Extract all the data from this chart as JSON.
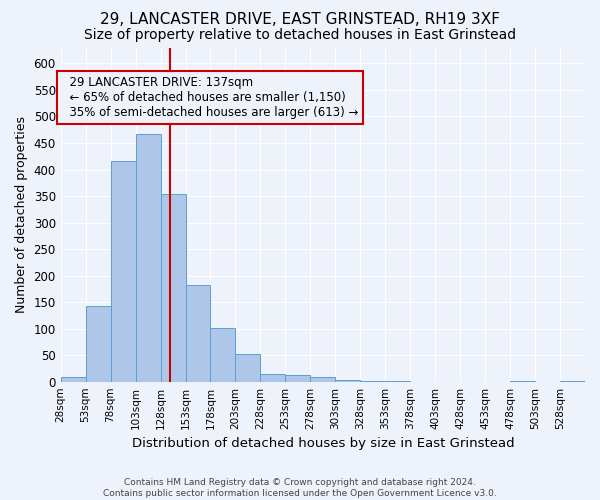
{
  "title1": "29, LANCASTER DRIVE, EAST GRINSTEAD, RH19 3XF",
  "title2": "Size of property relative to detached houses in East Grinstead",
  "xlabel": "Distribution of detached houses by size in East Grinstead",
  "ylabel": "Number of detached properties",
  "footer1": "Contains HM Land Registry data © Crown copyright and database right 2024.",
  "footer2": "Contains public sector information licensed under the Open Government Licence v3.0.",
  "bin_edges": [
    28,
    53,
    78,
    103,
    128,
    153,
    178,
    203,
    228,
    253,
    278,
    303,
    328,
    353,
    378,
    403,
    428,
    453,
    478,
    503,
    528,
    553
  ],
  "bar_heights": [
    8,
    143,
    416,
    467,
    354,
    183,
    101,
    53,
    15,
    12,
    9,
    4,
    2,
    1,
    0,
    0,
    0,
    0,
    2,
    0,
    2
  ],
  "bar_color": "#aec6e8",
  "bar_edge_color": "#5a9fd4",
  "property_size": 137,
  "vline_color": "#cc0000",
  "annotation_line1": "29 LANCASTER DRIVE: 137sqm",
  "annotation_line2": "← 65% of detached houses are smaller (1,150)",
  "annotation_line3": "35% of semi-detached houses are larger (613) →",
  "annotation_box_color": "#cc0000",
  "background_color": "#eef2fa",
  "grid_color": "#ffffff",
  "ylim": [
    0,
    630
  ],
  "yticks": [
    0,
    50,
    100,
    150,
    200,
    250,
    300,
    350,
    400,
    450,
    500,
    550,
    600
  ],
  "title_fontsize": 11,
  "subtitle_fontsize": 10
}
